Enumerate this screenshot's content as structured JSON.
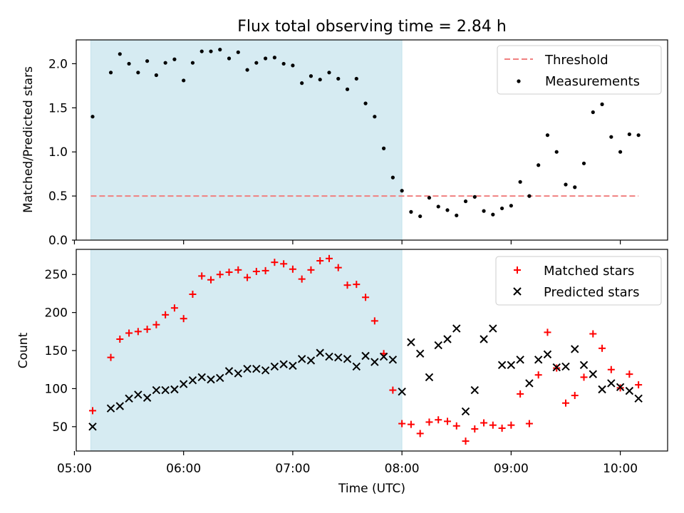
{
  "title": "Flux total observing time = 2.84 h",
  "colors": {
    "shade": "#add8e6",
    "threshold": "#f08080",
    "matched": "#ff0000",
    "predicted": "#000000",
    "measurements": "#000000"
  },
  "chart_data": [
    {
      "type": "scatter",
      "ylabel": "Matched/Predicted stars",
      "ylim": [
        0,
        2.27
      ],
      "xlim": [
        "05:01",
        "10:26"
      ],
      "yticks": [
        "0.0",
        "0.5",
        "1.0",
        "1.5",
        "2.0"
      ],
      "shaded_interval": [
        "05:09",
        "08:00"
      ],
      "legend_position": "top-right",
      "threshold": {
        "name": "Threshold",
        "value": 0.5,
        "x": [
          "05:09",
          "10:10"
        ],
        "style": "dashed"
      },
      "series": [
        {
          "name": "Measurements",
          "points": [
            [
              "05:10",
              1.4
            ],
            [
              "05:20",
              1.9
            ],
            [
              "05:25",
              2.11
            ],
            [
              "05:30",
              2.0
            ],
            [
              "05:35",
              1.9
            ],
            [
              "05:40",
              2.03
            ],
            [
              "05:45",
              1.87
            ],
            [
              "05:50",
              2.01
            ],
            [
              "05:55",
              2.05
            ],
            [
              "06:00",
              1.81
            ],
            [
              "06:05",
              2.01
            ],
            [
              "06:10",
              2.14
            ],
            [
              "06:15",
              2.14
            ],
            [
              "06:20",
              2.16
            ],
            [
              "06:25",
              2.06
            ],
            [
              "06:30",
              2.13
            ],
            [
              "06:35",
              1.93
            ],
            [
              "06:40",
              2.01
            ],
            [
              "06:45",
              2.06
            ],
            [
              "06:50",
              2.07
            ],
            [
              "06:55",
              2.0
            ],
            [
              "07:00",
              1.98
            ],
            [
              "07:05",
              1.78
            ],
            [
              "07:10",
              1.86
            ],
            [
              "07:15",
              1.82
            ],
            [
              "07:20",
              1.9
            ],
            [
              "07:25",
              1.83
            ],
            [
              "07:30",
              1.71
            ],
            [
              "07:35",
              1.83
            ],
            [
              "07:40",
              1.55
            ],
            [
              "07:45",
              1.4
            ],
            [
              "07:50",
              1.04
            ],
            [
              "07:55",
              0.71
            ],
            [
              "08:00",
              0.56
            ],
            [
              "08:05",
              0.32
            ],
            [
              "08:10",
              0.27
            ],
            [
              "08:15",
              0.48
            ],
            [
              "08:20",
              0.38
            ],
            [
              "08:25",
              0.34
            ],
            [
              "08:30",
              0.28
            ],
            [
              "08:35",
              0.44
            ],
            [
              "08:40",
              0.49
            ],
            [
              "08:45",
              0.33
            ],
            [
              "08:50",
              0.29
            ],
            [
              "08:55",
              0.36
            ],
            [
              "09:00",
              0.39
            ],
            [
              "09:05",
              0.66
            ],
            [
              "09:10",
              0.5
            ],
            [
              "09:15",
              0.85
            ],
            [
              "09:20",
              1.19
            ],
            [
              "09:25",
              1.0
            ],
            [
              "09:30",
              0.63
            ],
            [
              "09:35",
              0.6
            ],
            [
              "09:40",
              0.87
            ],
            [
              "09:45",
              1.45
            ],
            [
              "09:50",
              1.54
            ],
            [
              "09:55",
              1.17
            ],
            [
              "10:00",
              1.0
            ],
            [
              "10:05",
              1.2
            ],
            [
              "10:10",
              1.19
            ]
          ]
        }
      ]
    },
    {
      "type": "scatter",
      "xlabel": "Time (UTC)",
      "ylabel": "Count",
      "ylim": [
        18,
        283
      ],
      "xlim": [
        "05:01",
        "10:26"
      ],
      "xticks": [
        "05:00",
        "06:00",
        "07:00",
        "08:00",
        "09:00",
        "10:00"
      ],
      "yticks": [
        "50",
        "100",
        "150",
        "200",
        "250"
      ],
      "shaded_interval": [
        "05:09",
        "08:00"
      ],
      "legend_position": "top-right",
      "series": [
        {
          "name": "Matched stars",
          "points": [
            [
              "05:10",
              71
            ],
            [
              "05:20",
              141
            ],
            [
              "05:25",
              165
            ],
            [
              "05:30",
              173
            ],
            [
              "05:35",
              175
            ],
            [
              "05:40",
              178
            ],
            [
              "05:45",
              184
            ],
            [
              "05:50",
              197
            ],
            [
              "05:55",
              206
            ],
            [
              "06:00",
              192
            ],
            [
              "06:05",
              224
            ],
            [
              "06:10",
              248
            ],
            [
              "06:15",
              243
            ],
            [
              "06:20",
              250
            ],
            [
              "06:25",
              253
            ],
            [
              "06:30",
              256
            ],
            [
              "06:35",
              246
            ],
            [
              "06:40",
              254
            ],
            [
              "06:45",
              255
            ],
            [
              "06:50",
              266
            ],
            [
              "06:55",
              264
            ],
            [
              "07:00",
              257
            ],
            [
              "07:05",
              244
            ],
            [
              "07:10",
              256
            ],
            [
              "07:15",
              268
            ],
            [
              "07:20",
              271
            ],
            [
              "07:25",
              259
            ],
            [
              "07:30",
              236
            ],
            [
              "07:35",
              237
            ],
            [
              "07:40",
              220
            ],
            [
              "07:45",
              189
            ],
            [
              "07:50",
              146
            ],
            [
              "07:55",
              98
            ],
            [
              "08:00",
              54
            ],
            [
              "08:05",
              53
            ],
            [
              "08:10",
              41
            ],
            [
              "08:15",
              56
            ],
            [
              "08:20",
              59
            ],
            [
              "08:25",
              57
            ],
            [
              "08:30",
              51
            ],
            [
              "08:35",
              31
            ],
            [
              "08:40",
              47
            ],
            [
              "08:45",
              55
            ],
            [
              "08:50",
              52
            ],
            [
              "08:55",
              48
            ],
            [
              "09:00",
              52
            ],
            [
              "09:05",
              93
            ],
            [
              "09:10",
              54
            ],
            [
              "09:15",
              118
            ],
            [
              "09:20",
              174
            ],
            [
              "09:25",
              127
            ],
            [
              "09:30",
              81
            ],
            [
              "09:35",
              91
            ],
            [
              "09:40",
              115
            ],
            [
              "09:45",
              172
            ],
            [
              "09:50",
              153
            ],
            [
              "09:55",
              125
            ],
            [
              "10:00",
              101
            ],
            [
              "10:05",
              119
            ],
            [
              "10:10",
              105
            ]
          ]
        },
        {
          "name": "Predicted stars",
          "points": [
            [
              "05:10",
              50
            ],
            [
              "05:20",
              74
            ],
            [
              "05:25",
              77
            ],
            [
              "05:30",
              87
            ],
            [
              "05:35",
              92
            ],
            [
              "05:40",
              88
            ],
            [
              "05:45",
              98
            ],
            [
              "05:50",
              98
            ],
            [
              "05:55",
              99
            ],
            [
              "06:00",
              106
            ],
            [
              "06:05",
              111
            ],
            [
              "06:10",
              115
            ],
            [
              "06:15",
              112
            ],
            [
              "06:20",
              114
            ],
            [
              "06:25",
              123
            ],
            [
              "06:30",
              120
            ],
            [
              "06:35",
              126
            ],
            [
              "06:40",
              126
            ],
            [
              "06:45",
              124
            ],
            [
              "06:50",
              129
            ],
            [
              "06:55",
              132
            ],
            [
              "07:00",
              130
            ],
            [
              "07:05",
              139
            ],
            [
              "07:10",
              137
            ],
            [
              "07:15",
              147
            ],
            [
              "07:20",
              142
            ],
            [
              "07:25",
              141
            ],
            [
              "07:30",
              139
            ],
            [
              "07:35",
              129
            ],
            [
              "07:40",
              143
            ],
            [
              "07:45",
              135
            ],
            [
              "07:50",
              142
            ],
            [
              "07:55",
              138
            ],
            [
              "08:00",
              96
            ],
            [
              "08:05",
              161
            ],
            [
              "08:10",
              146
            ],
            [
              "08:15",
              115
            ],
            [
              "08:20",
              157
            ],
            [
              "08:25",
              165
            ],
            [
              "08:30",
              179
            ],
            [
              "08:35",
              70
            ],
            [
              "08:40",
              98
            ],
            [
              "08:45",
              165
            ],
            [
              "08:50",
              179
            ],
            [
              "08:55",
              131
            ],
            [
              "09:00",
              131
            ],
            [
              "09:05",
              138
            ],
            [
              "09:10",
              107
            ],
            [
              "09:15",
              138
            ],
            [
              "09:20",
              145
            ],
            [
              "09:25",
              128
            ],
            [
              "09:30",
              129
            ],
            [
              "09:35",
              152
            ],
            [
              "09:40",
              131
            ],
            [
              "09:45",
              119
            ],
            [
              "09:50",
              99
            ],
            [
              "09:55",
              107
            ],
            [
              "10:00",
              102
            ],
            [
              "10:05",
              97
            ],
            [
              "10:10",
              87
            ]
          ]
        }
      ]
    }
  ]
}
